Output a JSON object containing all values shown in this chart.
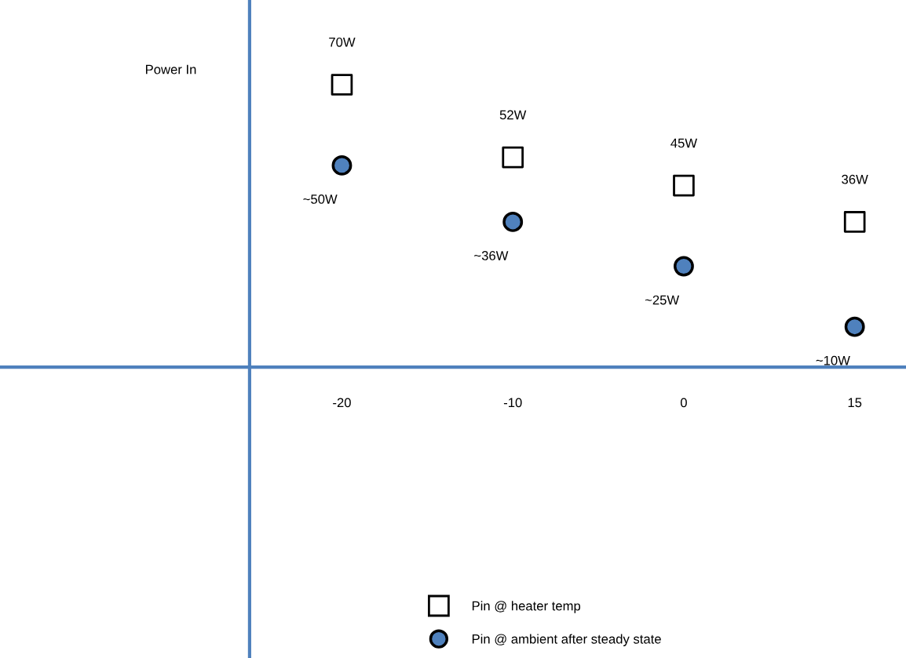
{
  "chart_data": {
    "type": "scatter",
    "ylabel": "Power In",
    "categories": [
      "-20",
      "-10",
      "0",
      "15"
    ],
    "series": [
      {
        "name": "Pin @ heater temp",
        "color": "#000000",
        "marker": "square",
        "values": [
          70,
          52,
          45,
          36
        ],
        "value_labels": [
          "70W",
          "52W",
          "45W",
          "36W"
        ]
      },
      {
        "name": "Pin @ ambient after steady state",
        "color": "#4f81bd",
        "marker": "circle",
        "values": [
          50,
          36,
          25,
          10
        ],
        "value_labels": [
          "~50W",
          "~36W",
          "~25W",
          "~10W"
        ]
      }
    ],
    "legend": "bottom",
    "grid": false
  }
}
